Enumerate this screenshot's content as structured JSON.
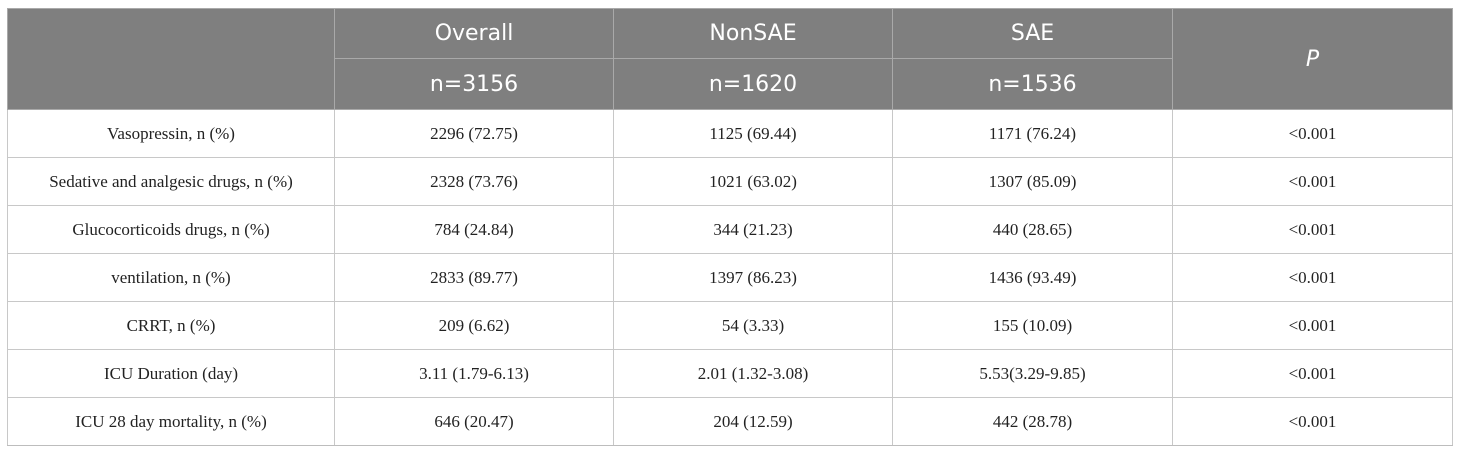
{
  "header": {
    "columns": [
      {
        "name": "",
        "n": ""
      },
      {
        "name": "Overall",
        "n": "n=3156"
      },
      {
        "name": "NonSAE",
        "n": "n=1620"
      },
      {
        "name": "SAE",
        "n": "n=1536"
      }
    ],
    "p_label": "P"
  },
  "rows": [
    {
      "label": "Vasopressin, n (%)",
      "overall": "2296 (72.75)",
      "nonsae": "1125 (69.44)",
      "sae": "1171 (76.24)",
      "p": "<0.001"
    },
    {
      "label": "Sedative and analgesic drugs, n (%)",
      "overall": "2328 (73.76)",
      "nonsae": "1021 (63.02)",
      "sae": "1307 (85.09)",
      "p": "<0.001"
    },
    {
      "label": "Glucocorticoids drugs, n (%)",
      "overall": "784 (24.84)",
      "nonsae": "344 (21.23)",
      "sae": "440 (28.65)",
      "p": "<0.001"
    },
    {
      "label": "ventilation, n (%)",
      "overall": "2833 (89.77)",
      "nonsae": "1397 (86.23)",
      "sae": "1436 (93.49)",
      "p": "<0.001"
    },
    {
      "label": "CRRT, n (%)",
      "overall": "209 (6.62)",
      "nonsae": "54 (3.33)",
      "sae": "155 (10.09)",
      "p": "<0.001"
    },
    {
      "label": "ICU Duration (day)",
      "overall": "3.11 (1.79-6.13)",
      "nonsae": "2.01 (1.32-3.08)",
      "sae": "5.53(3.29-9.85)",
      "p": "<0.001"
    },
    {
      "label": "ICU 28 day mortality, n (%)",
      "overall": "646 (20.47)",
      "nonsae": "204 (12.59)",
      "sae": "442 (28.78)",
      "p": "<0.001"
    }
  ]
}
